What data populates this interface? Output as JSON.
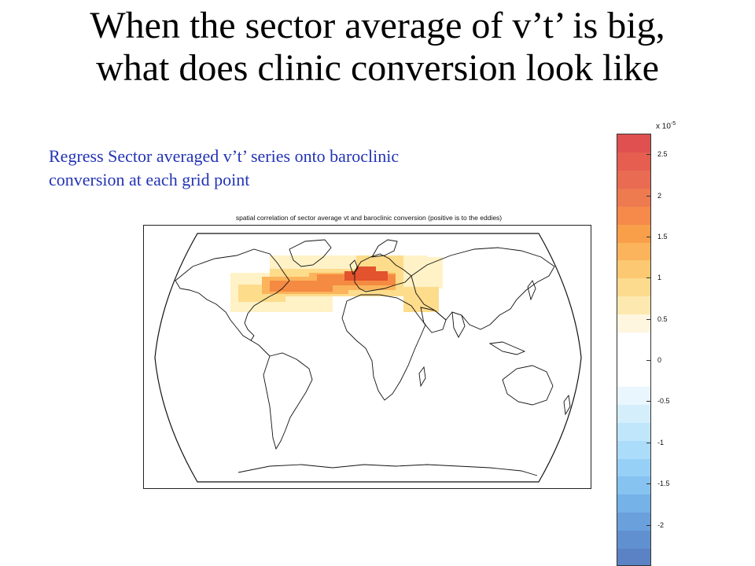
{
  "slide": {
    "title_line1": "When the sector average of v’t’ is big,",
    "title_line2": "what does clinic conversion look like",
    "caption_line1": "Regress Sector averaged v’t’ series onto baroclinic",
    "caption_line2": "conversion at each grid point"
  },
  "map": {
    "title": "spatial correlation of sector average vt and baroclinic conversion (positive is to the eddies)",
    "projection": "robinson",
    "highlight_region": "North Atlantic storm track (eastern North America to Europe)",
    "highlight_colors": [
      "#fff2c6",
      "#fddc8c",
      "#fbb45c",
      "#f58a42",
      "#e2532e"
    ]
  },
  "colorbar": {
    "scale_label": "x 10",
    "scale_exponent": "-5",
    "ticks": [
      "2.5",
      "2",
      "1.5",
      "1",
      "0.5",
      "0",
      "-0.5",
      "-1",
      "-1.5",
      "-2"
    ],
    "tick_values": [
      2.5,
      2,
      1.5,
      1,
      0.5,
      0,
      -0.5,
      -1,
      -1.5,
      -2
    ],
    "range": [
      -2.5,
      2.75
    ],
    "bands": [
      "#e05050",
      "#e55e50",
      "#e86b52",
      "#ee7a50",
      "#f58a4a",
      "#f99f4a",
      "#fbb45c",
      "#fcc872",
      "#fddb8e",
      "#fde9b0",
      "#fff6e0",
      "#ffffff",
      "#ffffff",
      "#ffffff",
      "#eaf6fd",
      "#d4eefb",
      "#c0e6fb",
      "#abdcf9",
      "#97d0f7",
      "#86c3f1",
      "#74b2e8",
      "#6aa0dc",
      "#6190d0",
      "#5a82c4"
    ]
  }
}
